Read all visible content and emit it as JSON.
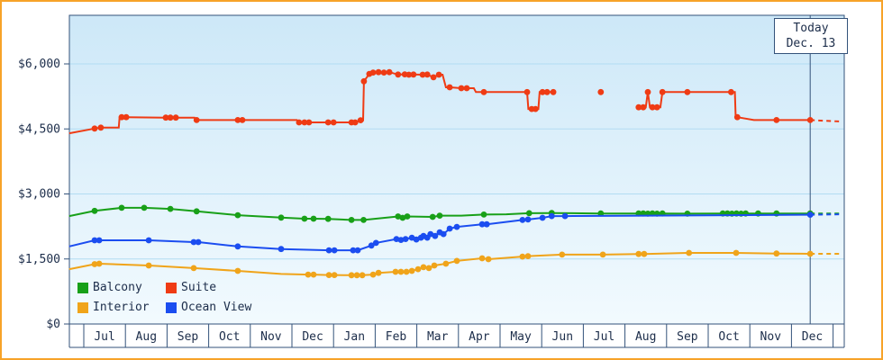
{
  "legend_note": "price-by-cabin-category history chart",
  "chart_data": {
    "type": "line",
    "y_axis": {
      "tick_labels": [
        "$0",
        "$1,500",
        "$3,000",
        "$4,500",
        "$6,000"
      ],
      "tick_values": [
        0,
        1500,
        3000,
        4500,
        6000
      ],
      "min": 0,
      "max": 6600,
      "grid": true
    },
    "x_axis": {
      "tick_labels": [
        "Jul",
        "Aug",
        "Sep",
        "Oct",
        "Nov",
        "Dec",
        "Jan",
        "Feb",
        "Mar",
        "Apr",
        "May",
        "Jun",
        "Jul",
        "Aug",
        "Sep",
        "Oct",
        "Nov",
        "Dec"
      ]
    },
    "today": {
      "label": "Today",
      "date": "Dec. 13",
      "x_month": 17.45
    },
    "legend_position": "bottom-left",
    "series": [
      {
        "id": "balcony",
        "name": "Balcony",
        "color": "#18a018",
        "segments": [
          [
            [
              -0.35,
              2490,
              0
            ],
            [
              0.26,
              2610,
              1
            ],
            [
              0.91,
              2680,
              1
            ],
            [
              1.45,
              2680,
              1
            ],
            [
              2.08,
              2655,
              1
            ],
            [
              2.71,
              2600,
              1
            ],
            [
              3.7,
              2510,
              1
            ],
            [
              4.74,
              2455,
              1
            ],
            [
              5.3,
              2430,
              1
            ],
            [
              5.52,
              2430,
              1
            ],
            [
              5.87,
              2425,
              1
            ],
            [
              6.43,
              2400,
              1
            ],
            [
              6.72,
              2400,
              1
            ],
            [
              7.55,
              2480,
              1
            ],
            [
              7.66,
              2450,
              1
            ],
            [
              7.77,
              2480,
              1
            ],
            [
              8.38,
              2470,
              1
            ],
            [
              8.55,
              2500,
              1
            ],
            [
              9.07,
              2500,
              0
            ],
            [
              9.61,
              2525,
              1
            ],
            [
              10.15,
              2530,
              0
            ],
            [
              10.7,
              2555,
              1
            ],
            [
              11.24,
              2560,
              1
            ],
            [
              12.42,
              2550,
              1
            ],
            [
              13.33,
              2550,
              1
            ],
            [
              13.44,
              2550,
              1
            ],
            [
              13.55,
              2545,
              1
            ],
            [
              13.66,
              2550,
              1
            ],
            [
              13.77,
              2545,
              1
            ],
            [
              13.9,
              2550,
              1
            ],
            [
              14.5,
              2545,
              1
            ],
            [
              15.35,
              2550,
              1
            ],
            [
              15.46,
              2550,
              1
            ],
            [
              15.57,
              2545,
              1
            ],
            [
              15.68,
              2550,
              1
            ],
            [
              15.79,
              2545,
              1
            ],
            [
              15.9,
              2550,
              1
            ],
            [
              16.2,
              2550,
              1
            ],
            [
              16.64,
              2550,
              1
            ],
            [
              17.45,
              2550,
              1
            ]
          ]
        ],
        "forecast": [
          [
            17.45,
            2550
          ],
          [
            18.22,
            2550
          ]
        ]
      },
      {
        "id": "suite",
        "name": "Suite",
        "color": "#ef3b14",
        "segments": [
          [
            [
              -0.35,
              4400,
              0
            ],
            [
              0.26,
              4510,
              1
            ],
            [
              0.41,
              4530,
              1
            ],
            [
              0.84,
              4530,
              0
            ],
            [
              0.86,
              4765,
              0
            ],
            [
              0.91,
              4770,
              1
            ],
            [
              1.02,
              4770,
              1
            ],
            [
              1.97,
              4760,
              1
            ],
            [
              2.08,
              4760,
              1
            ],
            [
              2.21,
              4760,
              1
            ],
            [
              2.66,
              4760,
              0
            ],
            [
              2.71,
              4705,
              1
            ],
            [
              3.7,
              4705,
              1
            ],
            [
              3.81,
              4705,
              1
            ],
            [
              5.12,
              4705,
              0
            ],
            [
              5.17,
              4650,
              1
            ],
            [
              5.3,
              4650,
              1
            ],
            [
              5.41,
              4650,
              1
            ],
            [
              5.87,
              4650,
              1
            ],
            [
              6.0,
              4650,
              1
            ],
            [
              6.43,
              4650,
              1
            ],
            [
              6.52,
              4650,
              1
            ],
            [
              6.65,
              4700,
              1
            ],
            [
              6.71,
              4700,
              0
            ],
            [
              6.73,
              5600,
              1
            ],
            [
              6.86,
              5770,
              1
            ],
            [
              6.95,
              5800,
              1
            ],
            [
              7.08,
              5810,
              1
            ],
            [
              7.21,
              5800,
              1
            ],
            [
              7.34,
              5810,
              1
            ],
            [
              7.55,
              5755,
              1
            ],
            [
              7.71,
              5760,
              1
            ],
            [
              7.81,
              5750,
              1
            ],
            [
              7.92,
              5755,
              1
            ],
            [
              8.14,
              5750,
              1
            ],
            [
              8.25,
              5755,
              1
            ],
            [
              8.4,
              5690,
              1
            ],
            [
              8.53,
              5750,
              1
            ],
            [
              8.62,
              5750,
              0
            ],
            [
              8.7,
              5460,
              0
            ],
            [
              8.79,
              5460,
              1
            ],
            [
              9.07,
              5440,
              1
            ],
            [
              9.2,
              5440,
              1
            ],
            [
              9.37,
              5440,
              0
            ],
            [
              9.42,
              5350,
              0
            ],
            [
              9.61,
              5350,
              1
            ],
            [
              10.65,
              5350,
              1
            ],
            [
              10.68,
              4960,
              0
            ],
            [
              10.76,
              4960,
              1
            ],
            [
              10.85,
              4960,
              1
            ],
            [
              10.92,
              4960,
              0
            ],
            [
              10.95,
              5350,
              0
            ],
            [
              11.02,
              5350,
              1
            ],
            [
              11.13,
              5350,
              1
            ],
            [
              11.28,
              5350,
              1
            ]
          ],
          [
            [
              12.42,
              5350,
              1
            ]
          ],
          [
            [
              13.33,
              5000,
              1
            ],
            [
              13.44,
              5000,
              1
            ],
            [
              13.5,
              5000,
              0
            ],
            [
              13.55,
              5350,
              1
            ],
            [
              13.6,
              5000,
              0
            ],
            [
              13.66,
              5000,
              1
            ],
            [
              13.77,
              5000,
              1
            ],
            [
              13.85,
              5000,
              0
            ],
            [
              13.9,
              5350,
              1
            ],
            [
              14.5,
              5350,
              1
            ],
            [
              15.55,
              5350,
              1
            ],
            [
              15.64,
              5350,
              0
            ],
            [
              15.66,
              4770,
              0
            ],
            [
              15.7,
              4770,
              1
            ],
            [
              16.1,
              4705,
              0
            ],
            [
              16.64,
              4705,
              1
            ],
            [
              17.45,
              4705,
              1
            ]
          ]
        ],
        "forecast": [
          [
            17.45,
            4705
          ],
          [
            18.22,
            4670
          ]
        ]
      },
      {
        "id": "interior",
        "name": "Interior",
        "color": "#f0a41a",
        "segments": [
          [
            [
              -0.35,
              1265,
              0
            ],
            [
              0.26,
              1380,
              1
            ],
            [
              0.37,
              1390,
              1
            ],
            [
              1.56,
              1350,
              1
            ],
            [
              2.64,
              1290,
              1
            ],
            [
              3.7,
              1225,
              1
            ],
            [
              4.74,
              1155,
              0
            ],
            [
              5.39,
              1140,
              1
            ],
            [
              5.52,
              1140,
              1
            ],
            [
              5.89,
              1130,
              1
            ],
            [
              6.02,
              1130,
              1
            ],
            [
              6.43,
              1125,
              1
            ],
            [
              6.56,
              1125,
              1
            ],
            [
              6.69,
              1125,
              1
            ],
            [
              6.95,
              1140,
              1
            ],
            [
              7.08,
              1180,
              1
            ],
            [
              7.49,
              1205,
              1
            ],
            [
              7.62,
              1205,
              1
            ],
            [
              7.75,
              1205,
              1
            ],
            [
              7.88,
              1225,
              1
            ],
            [
              8.03,
              1265,
              1
            ],
            [
              8.16,
              1310,
              1
            ],
            [
              8.29,
              1290,
              1
            ],
            [
              8.42,
              1350,
              1
            ],
            [
              8.7,
              1390,
              1
            ],
            [
              8.96,
              1455,
              1
            ],
            [
              9.57,
              1515,
              1
            ],
            [
              9.72,
              1495,
              1
            ],
            [
              10.54,
              1555,
              1
            ],
            [
              10.67,
              1565,
              1
            ],
            [
              11.49,
              1600,
              1
            ],
            [
              12.47,
              1600,
              1
            ],
            [
              13.33,
              1615,
              1
            ],
            [
              13.46,
              1615,
              1
            ],
            [
              14.54,
              1640,
              1
            ],
            [
              15.67,
              1640,
              1
            ],
            [
              16.64,
              1625,
              1
            ],
            [
              17.45,
              1620,
              1
            ]
          ]
        ],
        "forecast": [
          [
            17.45,
            1620
          ],
          [
            18.22,
            1620
          ]
        ]
      },
      {
        "id": "ocean-view",
        "name": "Ocean View",
        "color": "#1b4df0",
        "segments": [
          [
            [
              -0.35,
              1790,
              0
            ],
            [
              0.26,
              1930,
              1
            ],
            [
              0.37,
              1930,
              1
            ],
            [
              1.56,
              1930,
              1
            ],
            [
              2.64,
              1890,
              1
            ],
            [
              2.75,
              1890,
              1
            ],
            [
              3.7,
              1790,
              1
            ],
            [
              4.74,
              1730,
              1
            ],
            [
              5.89,
              1700,
              1
            ],
            [
              6.02,
              1700,
              1
            ],
            [
              6.47,
              1700,
              1
            ],
            [
              6.58,
              1700,
              1
            ],
            [
              6.91,
              1810,
              1
            ],
            [
              7.02,
              1870,
              1
            ],
            [
              7.51,
              1960,
              1
            ],
            [
              7.62,
              1940,
              1
            ],
            [
              7.73,
              1960,
              1
            ],
            [
              7.88,
              1990,
              1
            ],
            [
              7.99,
              1950,
              1
            ],
            [
              8.1,
              1990,
              1
            ],
            [
              8.16,
              2030,
              1
            ],
            [
              8.25,
              1990,
              1
            ],
            [
              8.33,
              2075,
              1
            ],
            [
              8.44,
              2030,
              1
            ],
            [
              8.55,
              2115,
              1
            ],
            [
              8.64,
              2075,
              1
            ],
            [
              8.79,
              2200,
              1
            ],
            [
              8.96,
              2240,
              1
            ],
            [
              9.57,
              2300,
              1
            ],
            [
              9.68,
              2300,
              1
            ],
            [
              10.54,
              2400,
              1
            ],
            [
              10.67,
              2410,
              1
            ],
            [
              11.02,
              2450,
              1
            ],
            [
              11.24,
              2490,
              1
            ],
            [
              11.56,
              2490,
              1
            ],
            [
              13.5,
              2500,
              0
            ],
            [
              15.5,
              2510,
              0
            ],
            [
              17.45,
              2520,
              1
            ]
          ]
        ],
        "forecast": [
          [
            17.45,
            2520
          ],
          [
            18.22,
            2530
          ]
        ]
      }
    ],
    "colors": {
      "frame_border": "#f7a329",
      "axis": "#33527a",
      "gridline": "#b2dcf2",
      "plot_bg_top": "#cde8f8",
      "plot_bg_bottom": "#f2fafe",
      "text": "#1c2d4a"
    }
  }
}
